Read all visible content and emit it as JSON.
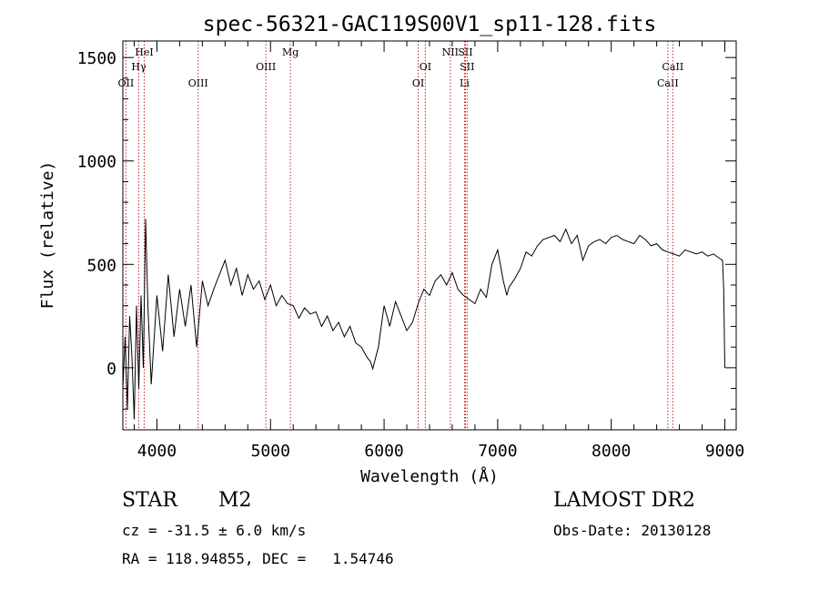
{
  "chart_data": {
    "type": "line",
    "title": "spec-56321-GAC119S00V1_sp11-128.fits",
    "xlabel": "Wavelength (Å)",
    "ylabel": "Flux (relative)",
    "xlim": [
      3700,
      9100
    ],
    "ylim": [
      -300,
      1580
    ],
    "x_ticks": [
      4000,
      5000,
      6000,
      7000,
      8000,
      9000
    ],
    "y_ticks": [
      0,
      500,
      1000,
      1500
    ],
    "grid": false,
    "series": [
      {
        "x": [
          3700,
          3720,
          3740,
          3760,
          3780,
          3800,
          3820,
          3840,
          3860,
          3880,
          3900,
          3920,
          3950,
          4000,
          4050,
          4100,
          4150,
          4200,
          4250,
          4300,
          4350,
          4400,
          4450,
          4500,
          4550,
          4600,
          4650,
          4700,
          4750,
          4800,
          4850,
          4900,
          4950,
          5000,
          5050,
          5100,
          5150,
          5200,
          5250,
          5300,
          5350,
          5400,
          5450,
          5500,
          5550,
          5600,
          5650,
          5700,
          5750,
          5800,
          5850,
          5880,
          5900,
          5950,
          6000,
          6050,
          6100,
          6150,
          6200,
          6250,
          6300,
          6350,
          6400,
          6450,
          6500,
          6550,
          6600,
          6650,
          6700,
          6750,
          6800,
          6850,
          6900,
          6950,
          7000,
          7050,
          7080,
          7100,
          7150,
          7200,
          7250,
          7300,
          7350,
          7400,
          7450,
          7500,
          7550,
          7600,
          7650,
          7700,
          7750,
          7800,
          7850,
          7900,
          7950,
          8000,
          8050,
          8100,
          8150,
          8200,
          8250,
          8300,
          8350,
          8400,
          8450,
          8500,
          8550,
          8600,
          8650,
          8700,
          8750,
          8800,
          8850,
          8900,
          8950,
          8980,
          8990,
          9000
        ],
        "y": [
          -100,
          150,
          -200,
          250,
          50,
          -250,
          300,
          -100,
          350,
          0,
          720,
          300,
          -80,
          350,
          80,
          450,
          150,
          380,
          200,
          400,
          100,
          420,
          300,
          380,
          450,
          520,
          400,
          480,
          350,
          450,
          380,
          420,
          330,
          400,
          300,
          350,
          310,
          300,
          240,
          290,
          260,
          270,
          200,
          250,
          180,
          220,
          150,
          200,
          120,
          100,
          50,
          30,
          -5,
          100,
          300,
          200,
          320,
          250,
          180,
          220,
          310,
          380,
          350,
          420,
          450,
          400,
          460,
          380,
          350,
          330,
          310,
          380,
          340,
          500,
          570,
          420,
          350,
          390,
          430,
          480,
          560,
          540,
          590,
          620,
          630,
          640,
          610,
          670,
          600,
          640,
          520,
          590,
          610,
          620,
          600,
          630,
          640,
          620,
          610,
          600,
          640,
          620,
          590,
          600,
          570,
          560,
          550,
          540,
          570,
          560,
          550,
          560,
          540,
          550,
          530,
          520,
          380,
          0
        ]
      }
    ],
    "lines": [
      {
        "label": "OII",
        "x": 3727,
        "label_row": 3
      },
      {
        "label": "Hγ",
        "x": 3840,
        "label_row": 2
      },
      {
        "label": "HeI",
        "x": 3888,
        "label_row": 1
      },
      {
        "label": "OIII",
        "x": 4363,
        "label_row": 3
      },
      {
        "label": "OIII",
        "x": 4959,
        "label_row": 2
      },
      {
        "label": "Mg",
        "x": 5175,
        "label_row": 1
      },
      {
        "label": "OI",
        "x": 6300,
        "label_row": 3
      },
      {
        "label": "OI",
        "x": 6363,
        "label_row": 2
      },
      {
        "label": "NII",
        "x": 6583,
        "label_row": 1
      },
      {
        "label": "SII",
        "x": 6716,
        "label_row": 1
      },
      {
        "label": "SII",
        "x": 6731,
        "label_row": 2
      },
      {
        "label": "Li",
        "x": 6708,
        "label_row": 3
      },
      {
        "label": "CaII",
        "x": 8498,
        "label_row": 3
      },
      {
        "label": "CaII",
        "x": 8542,
        "label_row": 2
      }
    ]
  },
  "info": {
    "class_label": "STAR",
    "subclass": "M2",
    "survey": "LAMOST DR2",
    "redshift": "cz = -31.5 ± 6.0 km/s",
    "obs_date": "Obs-Date: 20130128",
    "coords": "RA = 118.94855, DEC =   1.54746"
  },
  "colors": {
    "line_marker": "#cc2222",
    "spectrum": "#000000",
    "background": "#ffffff"
  }
}
